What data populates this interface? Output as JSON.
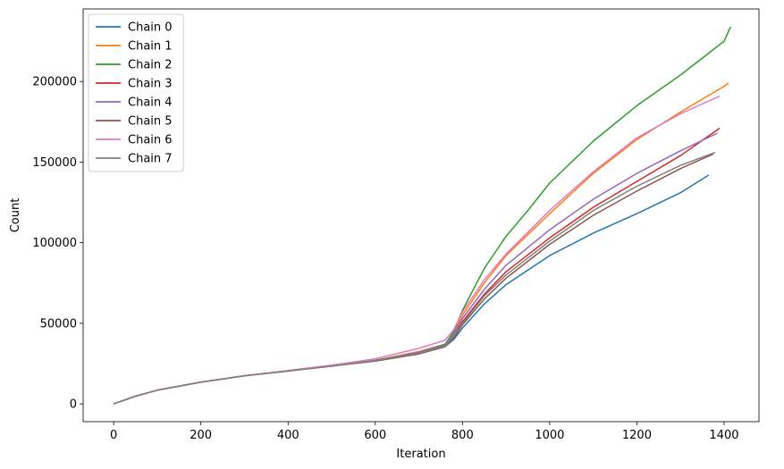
{
  "chart_data": {
    "type": "line",
    "title": "",
    "xlabel": "Iteration",
    "ylabel": "Count",
    "xlim": [
      -70,
      1480
    ],
    "ylim": [
      -11000,
      245000
    ],
    "xticks": [
      0,
      200,
      400,
      600,
      800,
      1000,
      1200,
      1400
    ],
    "yticks": [
      0,
      50000,
      100000,
      150000,
      200000
    ],
    "grid": false,
    "legend": "top-left",
    "series": [
      {
        "name": "Chain 0",
        "color": "#1f77b4",
        "x": [
          0,
          50,
          100,
          200,
          300,
          400,
          500,
          600,
          700,
          760,
          780,
          800,
          850,
          900,
          1000,
          1100,
          1200,
          1300,
          1365
        ],
        "y": [
          0,
          4800,
          8500,
          13500,
          17500,
          20500,
          23500,
          26800,
          31500,
          35500,
          40000,
          47000,
          62000,
          74000,
          92000,
          106000,
          118000,
          131000,
          142000
        ]
      },
      {
        "name": "Chain 1",
        "color": "#ff7f0e",
        "x": [
          0,
          50,
          100,
          200,
          300,
          400,
          500,
          600,
          700,
          760,
          780,
          800,
          850,
          900,
          1000,
          1100,
          1200,
          1300,
          1400,
          1410
        ],
        "y": [
          0,
          4800,
          8500,
          13500,
          17500,
          20500,
          23500,
          27000,
          32500,
          37000,
          44000,
          55000,
          75000,
          92000,
          118000,
          143000,
          164000,
          181000,
          197000,
          199000
        ]
      },
      {
        "name": "Chain 2",
        "color": "#2ca02c",
        "x": [
          0,
          50,
          100,
          200,
          300,
          400,
          500,
          600,
          700,
          760,
          780,
          800,
          850,
          900,
          950,
          1000,
          1100,
          1200,
          1300,
          1400,
          1415
        ],
        "y": [
          0,
          4800,
          8500,
          13500,
          17500,
          20500,
          23500,
          27000,
          32000,
          37000,
          45000,
          58000,
          84000,
          104000,
          120000,
          137000,
          163000,
          185000,
          204000,
          225000,
          234000
        ]
      },
      {
        "name": "Chain 3",
        "color": "#d62728",
        "x": [
          0,
          50,
          100,
          200,
          300,
          400,
          500,
          600,
          700,
          760,
          780,
          800,
          850,
          900,
          1000,
          1100,
          1200,
          1300,
          1390
        ],
        "y": [
          0,
          4800,
          8500,
          13500,
          17500,
          20500,
          23500,
          26800,
          31800,
          36000,
          42000,
          51000,
          68000,
          82000,
          103000,
          122000,
          138000,
          154000,
          171000
        ]
      },
      {
        "name": "Chain 4",
        "color": "#9467bd",
        "x": [
          0,
          50,
          100,
          200,
          300,
          400,
          500,
          600,
          700,
          760,
          780,
          800,
          850,
          900,
          1000,
          1100,
          1200,
          1300,
          1385
        ],
        "y": [
          0,
          4800,
          8500,
          13500,
          17500,
          20500,
          23500,
          26800,
          32000,
          36500,
          43000,
          53000,
          71000,
          86000,
          108000,
          127000,
          143000,
          157000,
          168000
        ]
      },
      {
        "name": "Chain 5",
        "color": "#8c564b",
        "x": [
          0,
          50,
          100,
          200,
          300,
          400,
          500,
          600,
          700,
          760,
          780,
          800,
          850,
          900,
          1000,
          1100,
          1200,
          1300,
          1375
        ],
        "y": [
          0,
          4800,
          8500,
          13500,
          17500,
          20500,
          23500,
          26500,
          31000,
          35500,
          41000,
          49000,
          65000,
          78000,
          99000,
          117000,
          132000,
          146000,
          155000
        ]
      },
      {
        "name": "Chain 6",
        "color": "#e377c2",
        "x": [
          0,
          50,
          100,
          200,
          300,
          400,
          500,
          600,
          700,
          760,
          780,
          800,
          850,
          900,
          1000,
          1100,
          1200,
          1300,
          1390
        ],
        "y": [
          0,
          4800,
          8500,
          13500,
          17500,
          20700,
          24000,
          28000,
          34500,
          39500,
          46000,
          57000,
          77000,
          93000,
          120000,
          144000,
          165000,
          180000,
          191000
        ]
      },
      {
        "name": "Chain 7",
        "color": "#7f7f7f",
        "x": [
          0,
          50,
          100,
          200,
          300,
          400,
          500,
          600,
          700,
          760,
          780,
          800,
          850,
          900,
          1000,
          1100,
          1200,
          1300,
          1380
        ],
        "y": [
          0,
          4800,
          8500,
          13500,
          17500,
          20500,
          23500,
          26800,
          31500,
          36000,
          42000,
          50000,
          67000,
          80000,
          101000,
          120000,
          135000,
          148000,
          156000
        ]
      }
    ]
  }
}
